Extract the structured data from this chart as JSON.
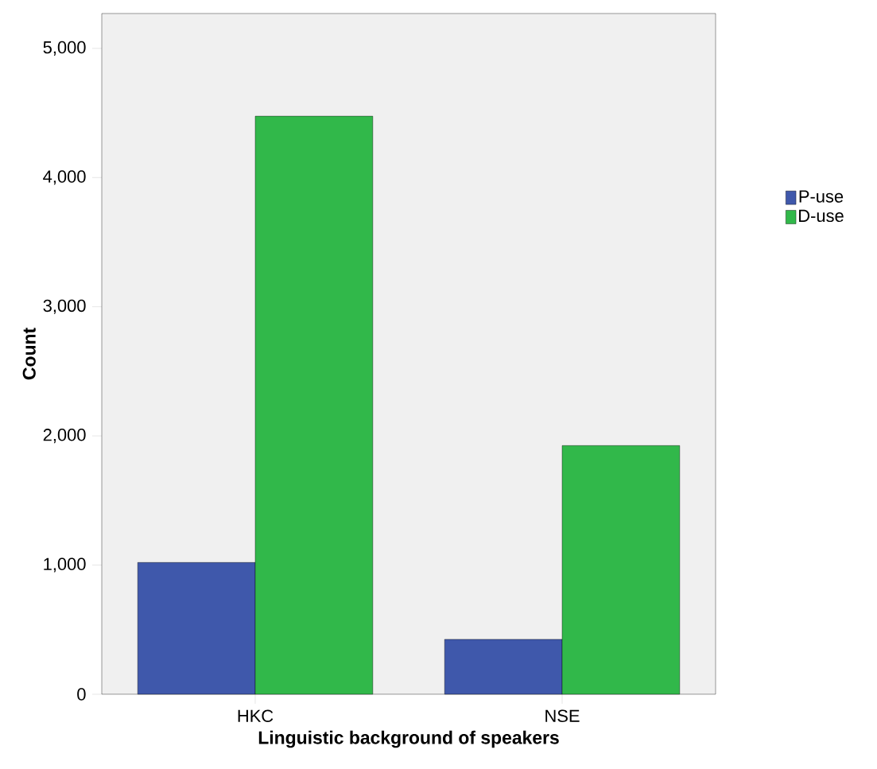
{
  "chart_data": {
    "type": "bar",
    "xlabel": "Linguistic background of speakers",
    "ylabel": "Count",
    "categories": [
      "HKC",
      "NSE"
    ],
    "series": [
      {
        "name": "P-use",
        "color": "#3f58ab",
        "values": [
          1020,
          425
        ]
      },
      {
        "name": "D-use",
        "color": "#31b84a",
        "values": [
          4475,
          1925
        ]
      }
    ],
    "ylim": [
      0,
      5270
    ],
    "yticks": [
      0,
      {
        "value": 1000,
        "label": "1,000"
      },
      {
        "value": 2000,
        "label": "2,000"
      },
      {
        "value": 3000,
        "label": "3,000"
      },
      {
        "value": 4000,
        "label": "4,000"
      },
      {
        "value": 5000,
        "label": "5,000"
      }
    ],
    "legend": "right"
  }
}
